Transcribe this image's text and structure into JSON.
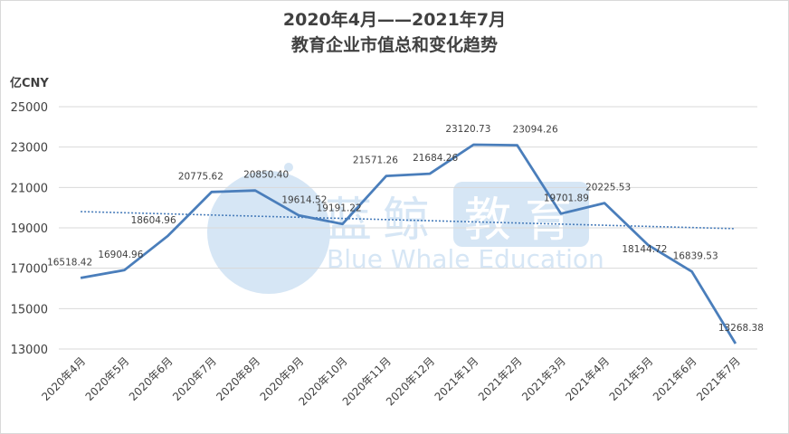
{
  "chart_data": {
    "type": "line",
    "title": "2020年4月——2021年7月",
    "subtitle": "教育企业市值总和变化趋势",
    "ylabel": "亿CNY",
    "ylim": [
      13000,
      25000
    ],
    "yticks": [
      "25000",
      "23000",
      "21000",
      "19000",
      "17000",
      "15000",
      "13000"
    ],
    "categories": [
      "2020年4月",
      "2020年5月",
      "2020年6月",
      "2020年7月",
      "2020年8月",
      "2020年9月",
      "2020年10月",
      "2020年11月",
      "2020年12月",
      "2021年1月",
      "2021年2月",
      "2021年3月",
      "2021年4月",
      "2021年5月",
      "2021年6月",
      "2021年7月"
    ],
    "values": [
      16518.42,
      16904.96,
      18604.96,
      20775.62,
      20850.4,
      19614.52,
      19191.22,
      21571.26,
      21684.26,
      23120.73,
      23094.26,
      19701.89,
      20225.53,
      18144.72,
      16839.53,
      13268.38
    ],
    "value_labels": [
      "16518.42",
      "16904.96",
      "18604.96",
      "20775.62",
      "20850.40",
      "19614.52",
      "19191.22",
      "21571.26",
      "21684.26",
      "23120.73",
      "23094.26",
      "19701.89",
      "20225.53",
      "18144.72",
      "16839.53",
      "13268.38"
    ],
    "trendline": true,
    "grid": true,
    "line_color": "#4a7ebb",
    "trend_color": "#4a7ebb",
    "watermark": {
      "cn": "蓝鲸教育",
      "en": "Blue Whale Education",
      "color": "#d6e6f5"
    }
  }
}
